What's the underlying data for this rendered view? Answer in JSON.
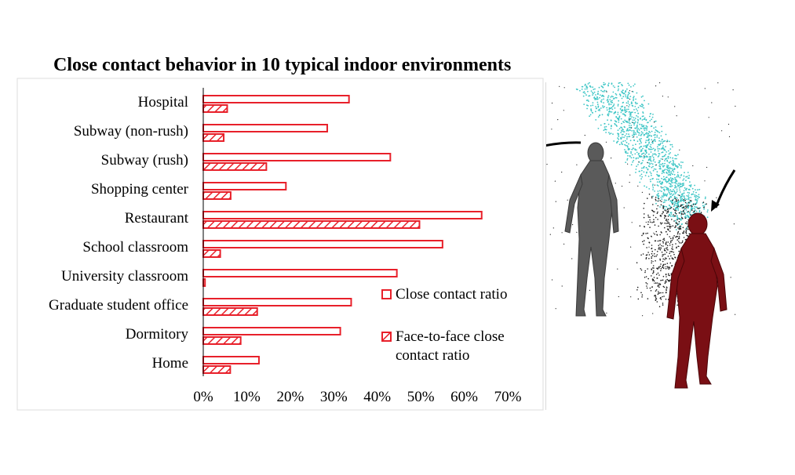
{
  "title": "Close contact behavior in 10 typical indoor environments",
  "chart_data": {
    "type": "bar",
    "orientation": "horizontal",
    "title": "Close contact behavior in 10 typical indoor environments",
    "categories": [
      "Hospital",
      "Subway (non-rush)",
      "Subway (rush)",
      "Shopping center",
      "Restaurant",
      "School classroom",
      "University classroom",
      "Graduate student office",
      "Dormitory",
      "Home"
    ],
    "series": [
      {
        "name": "Close contact ratio",
        "pattern": "hollow",
        "color": "#e8202a",
        "values": [
          33.5,
          28.5,
          43,
          19,
          64,
          55,
          44.5,
          34,
          31.5,
          12.8
        ]
      },
      {
        "name": "Face-to-face close contact ratio",
        "pattern": "hatched",
        "color": "#e8202a",
        "values": [
          5.5,
          4.7,
          14.5,
          6.3,
          49.7,
          3.9,
          0.4,
          12.4,
          8.6,
          6.2
        ]
      }
    ],
    "xlim": [
      0,
      70
    ],
    "xticks": [
      "0%",
      "10%",
      "20%",
      "30%",
      "40%",
      "50%",
      "60%",
      "70%"
    ],
    "grid": false,
    "legend": {
      "position": "bottom-right",
      "entries": [
        {
          "label": "Close contact ratio"
        },
        {
          "label_line1": "Face-to-face close",
          "label_line2": "contact ratio"
        }
      ]
    }
  },
  "illustration": {
    "description_icons": [
      "arrow-icon",
      "gray-human-figure-icon",
      "red-human-figure-icon",
      "aerosol-particle-cloud-icon"
    ],
    "colors": {
      "gray_figure": "#5a5a5a",
      "red_figure": "#7a0f14",
      "cyan_particles": "#3fc6c6",
      "black_particles": "#1a1a1a"
    }
  }
}
